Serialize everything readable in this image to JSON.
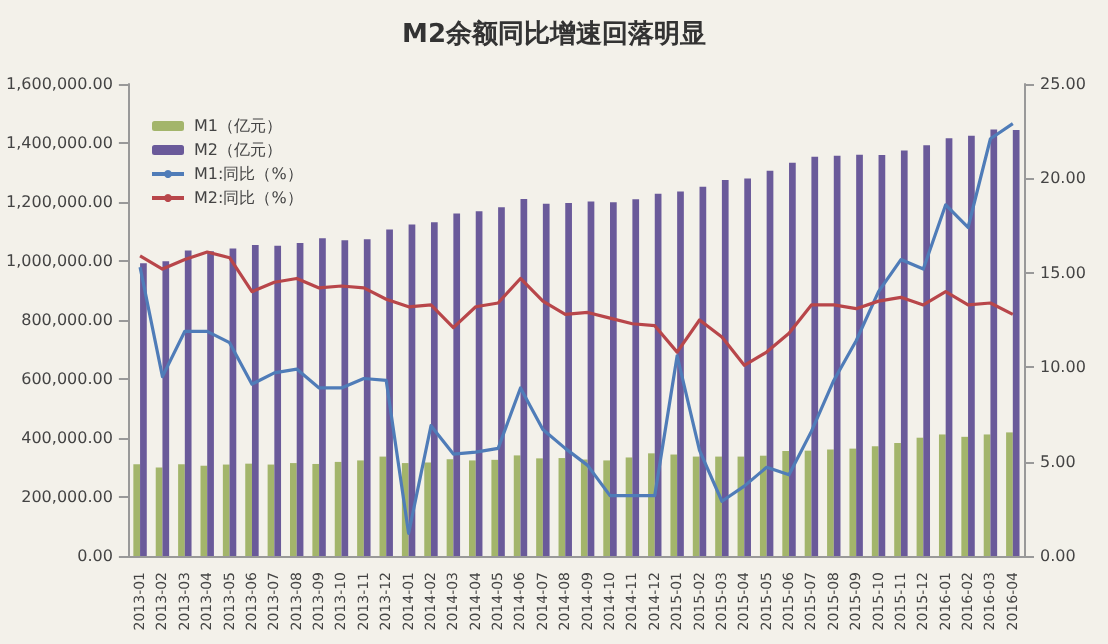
{
  "chart_data": {
    "type": "bar",
    "title": "M2余额同比增速回落明显",
    "categories": [
      "2013-01",
      "2013-02",
      "2013-03",
      "2013-04",
      "2013-05",
      "2013-06",
      "2013-07",
      "2013-08",
      "2013-09",
      "2013-10",
      "2013-11",
      "2013-12",
      "2014-01",
      "2014-02",
      "2014-03",
      "2014-04",
      "2014-05",
      "2014-06",
      "2014-07",
      "2014-08",
      "2014-09",
      "2014-10",
      "2014-11",
      "2014-12",
      "2015-01",
      "2015-02",
      "2015-03",
      "2015-04",
      "2015-05",
      "2015-06",
      "2015-07",
      "2015-08",
      "2015-09",
      "2015-10",
      "2015-11",
      "2015-12",
      "2016-01",
      "2016-02",
      "2016-03",
      "2016-04"
    ],
    "series": [
      {
        "name": "M1（亿元）",
        "color": "#a3b56b",
        "values": [
          311000,
          300000,
          311000,
          306000,
          310000,
          313000,
          310000,
          315000,
          312000,
          319000,
          324000,
          337000,
          315000,
          317000,
          328000,
          324000,
          326000,
          341000,
          331000,
          332000,
          327000,
          324000,
          334000,
          348000,
          344000,
          337000,
          337000,
          337000,
          340000,
          356000,
          357000,
          361000,
          364000,
          372000,
          383000,
          401000,
          412000,
          404000,
          412000,
          419000
        ]
      },
      {
        "name": "M2（亿元）",
        "color": "#6a5a9a",
        "values": [
          992000,
          999000,
          1036000,
          1033000,
          1042000,
          1054000,
          1052000,
          1061000,
          1077000,
          1070000,
          1074000,
          1107000,
          1124000,
          1131000,
          1161000,
          1169000,
          1182000,
          1210000,
          1194000,
          1197000,
          1202000,
          1199000,
          1209000,
          1228000,
          1236000,
          1252000,
          1275000,
          1280000,
          1306000,
          1333000,
          1353000,
          1357000,
          1360000,
          1359000,
          1375000,
          1392000,
          1416000,
          1425000,
          1446000,
          1444000
        ]
      },
      {
        "name": "M1:同比（%）",
        "type": "line",
        "axis": "y2",
        "color": "#4f7cb8",
        "values": [
          15.3,
          9.5,
          11.9,
          11.9,
          11.3,
          9.1,
          9.7,
          9.9,
          8.9,
          8.9,
          9.4,
          9.3,
          1.2,
          6.9,
          5.4,
          5.5,
          5.7,
          8.9,
          6.7,
          5.7,
          4.8,
          3.2,
          3.2,
          3.2,
          10.6,
          5.6,
          2.9,
          3.7,
          4.7,
          4.3,
          6.6,
          9.3,
          11.4,
          14.0,
          15.7,
          15.2,
          18.6,
          17.4,
          22.1,
          22.9
        ]
      },
      {
        "name": "M2:同比（%）",
        "type": "line",
        "axis": "y2",
        "color": "#b8464a",
        "values": [
          15.9,
          15.2,
          15.7,
          16.1,
          15.8,
          14.0,
          14.5,
          14.7,
          14.2,
          14.3,
          14.2,
          13.6,
          13.2,
          13.3,
          12.1,
          13.2,
          13.4,
          14.7,
          13.5,
          12.8,
          12.9,
          12.6,
          12.3,
          12.2,
          10.8,
          12.5,
          11.6,
          10.1,
          10.8,
          11.8,
          13.3,
          13.3,
          13.1,
          13.5,
          13.7,
          13.3,
          14.0,
          13.3,
          13.4,
          12.8
        ]
      }
    ],
    "ylim": [
      0,
      1600000
    ],
    "yticks": [
      {
        "value": 0,
        "label": "0.00"
      },
      {
        "value": 200000,
        "label": "200,000.00"
      },
      {
        "value": 400000,
        "label": "400,000.00"
      },
      {
        "value": 600000,
        "label": "600,000.00"
      },
      {
        "value": 800000,
        "label": "800,000.00"
      },
      {
        "value": 1000000,
        "label": "1,000,000.00"
      },
      {
        "value": 1200000,
        "label": "1,200,000.00"
      },
      {
        "value": 1400000,
        "label": "1,400,000.00"
      },
      {
        "value": 1600000,
        "label": "1,600,000.00"
      }
    ],
    "y2lim": [
      0,
      25
    ],
    "y2ticks": [
      {
        "value": 0,
        "label": "0.00"
      },
      {
        "value": 5,
        "label": "5.00"
      },
      {
        "value": 10,
        "label": "10.00"
      },
      {
        "value": 15,
        "label": "15.00"
      },
      {
        "value": 20,
        "label": "20.00"
      },
      {
        "value": 25,
        "label": "25.00"
      }
    ],
    "legend": "top left",
    "grid": false,
    "marker": "none",
    "line_style": "solid"
  }
}
